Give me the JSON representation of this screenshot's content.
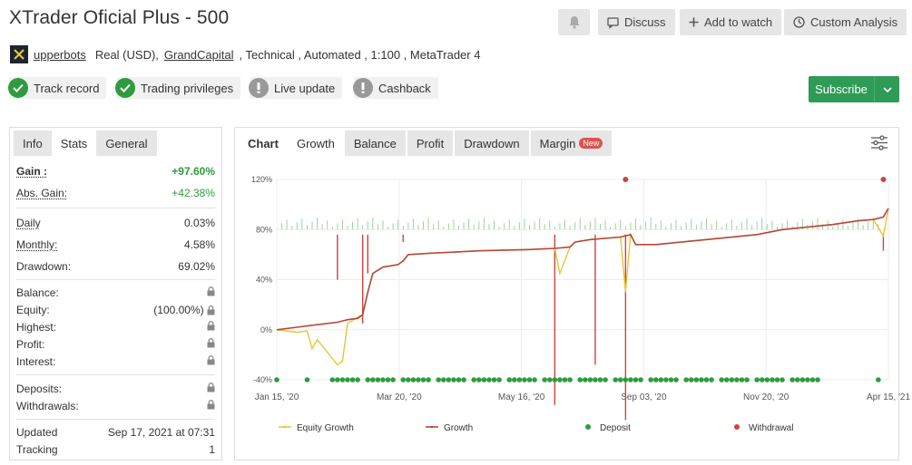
{
  "header": {
    "title": "XTrader Oficial Plus - 500",
    "buttons": {
      "notify_icon": "bell-icon",
      "discuss": "Discuss",
      "watch": "Add to watch",
      "analysis": "Custom Analysis"
    }
  },
  "meta": {
    "user": "upperbots",
    "account": "Real (USD),",
    "broker": "GrandCapital",
    "rest": ", Technical , Automated , 1:100 , MetaTrader 4"
  },
  "badges": [
    {
      "label": "Track record",
      "status": "ok"
    },
    {
      "label": "Trading privileges",
      "status": "ok"
    },
    {
      "label": "Live update",
      "status": "warn"
    },
    {
      "label": "Cashback",
      "status": "warn"
    }
  ],
  "subscribe": {
    "label": "Subscribe"
  },
  "colors": {
    "green": "#2e9b56",
    "growth": "#b5473a",
    "equity": "#e8c43a",
    "deposit": "#2e9b3e",
    "withdrawal": "#c9463d"
  },
  "stats": {
    "tabs": [
      "Info",
      "Stats",
      "General"
    ],
    "gain_label": "Gain :",
    "gain_value": "+97.60%",
    "abs_gain_label": "Abs. Gain:",
    "abs_gain_value": "+42.38%",
    "daily_label": "Daily",
    "daily_value": "0.03%",
    "monthly_label": "Monthly:",
    "monthly_value": "4.58%",
    "drawdown_label": "Drawdown:",
    "drawdown_value": "69.02%",
    "balance_label": "Balance:",
    "equity_label": "Equity:",
    "equity_value": "(100.00%)",
    "highest_label": "Highest:",
    "profit_label": "Profit:",
    "interest_label": "Interest:",
    "deposits_label": "Deposits:",
    "withdrawals_label": "Withdrawals:",
    "updated_label": "Updated",
    "updated_value": "Sep 17, 2021 at 07:31",
    "tracking_label": "Tracking",
    "tracking_value": "1"
  },
  "chart_tabs": [
    {
      "label": "Chart",
      "bold": true
    },
    {
      "label": "Growth",
      "active": true
    },
    {
      "label": "Balance"
    },
    {
      "label": "Profit"
    },
    {
      "label": "Drawdown"
    },
    {
      "label": "Margin"
    }
  ],
  "chart_new_badge": "New",
  "chart_data": {
    "type": "line",
    "x_ticks": [
      "Jan 15, '20",
      "Mar 20, '20",
      "May 16, '20",
      "Sep 03, '20",
      "Nov 20, '20",
      "Apr 15, '21"
    ],
    "y_ticks": [
      "120%",
      "80%",
      "40%",
      "0%",
      "-40%"
    ],
    "ylim": [
      -40,
      120
    ],
    "grid": true,
    "legend": "bottom",
    "series": [
      {
        "name": "Equity Growth",
        "color": "#e8c43a"
      },
      {
        "name": "Growth",
        "color": "#b5473a"
      },
      {
        "name": "Deposit",
        "color": "#2e9b3e"
      },
      {
        "name": "Withdrawal",
        "color": "#c9463d"
      }
    ],
    "growth_points": [
      [
        0,
        0
      ],
      [
        4,
        2
      ],
      [
        8,
        4
      ],
      [
        12,
        6
      ],
      [
        14,
        8
      ],
      [
        16,
        9
      ],
      [
        17,
        12
      ],
      [
        18,
        30
      ],
      [
        19,
        45
      ],
      [
        21,
        50
      ],
      [
        24,
        52
      ],
      [
        25,
        55
      ],
      [
        26,
        60
      ],
      [
        30,
        61
      ],
      [
        40,
        63
      ],
      [
        50,
        64
      ],
      [
        55,
        65
      ],
      [
        58,
        66
      ],
      [
        59,
        70
      ],
      [
        62,
        72
      ],
      [
        68,
        74
      ],
      [
        70,
        76
      ],
      [
        71,
        68
      ],
      [
        75,
        68
      ],
      [
        85,
        72
      ],
      [
        95,
        76
      ],
      [
        100,
        80
      ],
      [
        110,
        84
      ],
      [
        115,
        87
      ],
      [
        118,
        88
      ],
      [
        120,
        90
      ],
      [
        121,
        97
      ]
    ],
    "equity_points": [
      [
        0,
        0
      ],
      [
        4,
        -2
      ],
      [
        6,
        -1
      ],
      [
        7,
        -15
      ],
      [
        8,
        -8
      ],
      [
        12,
        -28
      ],
      [
        13,
        -25
      ],
      [
        14,
        5
      ],
      [
        16,
        10
      ],
      [
        17,
        12
      ],
      [
        18,
        30
      ],
      [
        19,
        45
      ],
      [
        21,
        50
      ],
      [
        24,
        52
      ],
      [
        25,
        55
      ],
      [
        26,
        60
      ],
      [
        30,
        61
      ],
      [
        40,
        63
      ],
      [
        50,
        64
      ],
      [
        55,
        65
      ],
      [
        56,
        45
      ],
      [
        58,
        66
      ],
      [
        59,
        70
      ],
      [
        62,
        72
      ],
      [
        68,
        74
      ],
      [
        69,
        30
      ],
      [
        70,
        76
      ],
      [
        71,
        68
      ],
      [
        75,
        68
      ],
      [
        85,
        72
      ],
      [
        95,
        76
      ],
      [
        100,
        80
      ],
      [
        110,
        84
      ],
      [
        115,
        87
      ],
      [
        118,
        88
      ],
      [
        120,
        75
      ],
      [
        121,
        97
      ]
    ]
  },
  "legend": {
    "equity": "Equity Growth",
    "growth": "Growth",
    "deposit": "Deposit",
    "withdrawal": "Withdrawal"
  }
}
